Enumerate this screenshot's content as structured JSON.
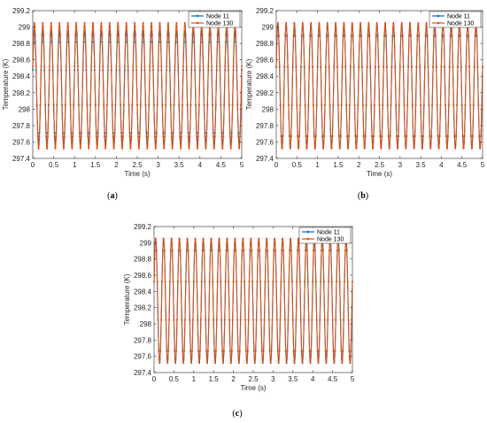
{
  "captions": [
    "(a)",
    "(b)",
    "(c)"
  ],
  "chart_data": [
    {
      "type": "line",
      "panel": "a",
      "xlabel": "Time (s)",
      "ylabel": "Temperature (K)",
      "xlim": [
        0,
        5
      ],
      "ylim": [
        297.4,
        299.2
      ],
      "xticks": [
        "0",
        "0.5",
        "1",
        "1.5",
        "2",
        "2.5",
        "3",
        "3.5",
        "4",
        "4.5",
        "5"
      ],
      "yticks": [
        "297.4",
        "297.6",
        "297.8",
        "298",
        "298.2",
        "298.4",
        "298.6",
        "298.8",
        "299",
        "299.2"
      ],
      "legend_position": "top-right",
      "grid": false,
      "series": [
        {
          "name": "Node 11",
          "color": "#0072BD",
          "marker": "dot",
          "min": 297.58,
          "max": 298.95,
          "cycles": 25
        },
        {
          "name": "Node 130",
          "color": "#D95319",
          "marker": "dot",
          "min": 297.52,
          "max": 299.05,
          "cycles": 25
        }
      ]
    },
    {
      "type": "line",
      "panel": "b",
      "xlabel": "Time (s)",
      "ylabel": "Temperature (K)",
      "xlim": [
        0,
        5
      ],
      "ylim": [
        297.4,
        299.2
      ],
      "xticks": [
        "0",
        "0.5",
        "1",
        "1.5",
        "2",
        "2.5",
        "3",
        "3.5",
        "4",
        "4.5",
        "5"
      ],
      "yticks": [
        "297.4",
        "297.6",
        "297.8",
        "298",
        "298.2",
        "298.4",
        "298.6",
        "298.8",
        "299",
        "299.2"
      ],
      "legend_position": "top-right",
      "grid": false,
      "series": [
        {
          "name": "Node 11",
          "color": "#0072BD",
          "marker": "dot",
          "min": 297.53,
          "max": 299.03,
          "cycles": 25
        },
        {
          "name": "Node 130",
          "color": "#D95319",
          "marker": "dot",
          "min": 297.52,
          "max": 299.05,
          "cycles": 25
        }
      ]
    },
    {
      "type": "line",
      "panel": "c",
      "xlabel": "Time (s)",
      "ylabel": "Temperature (K)",
      "xlim": [
        0,
        5
      ],
      "ylim": [
        297.4,
        299.2
      ],
      "xticks": [
        "0",
        "0.5",
        "1",
        "1.5",
        "2",
        "2.5",
        "3",
        "3.5",
        "4",
        "4.5",
        "5"
      ],
      "yticks": [
        "297.4",
        "297.6",
        "297.8",
        "298",
        "298.2",
        "298.4",
        "298.6",
        "298.8",
        "299",
        "299.2"
      ],
      "legend_position": "top-right",
      "grid": false,
      "series": [
        {
          "name": "Node 11",
          "color": "#0072BD",
          "marker": "dot",
          "min": 297.52,
          "max": 299.05,
          "cycles": 25
        },
        {
          "name": "Node 130",
          "color": "#D95319",
          "marker": "dot",
          "min": 297.52,
          "max": 299.05,
          "cycles": 25
        }
      ]
    }
  ]
}
